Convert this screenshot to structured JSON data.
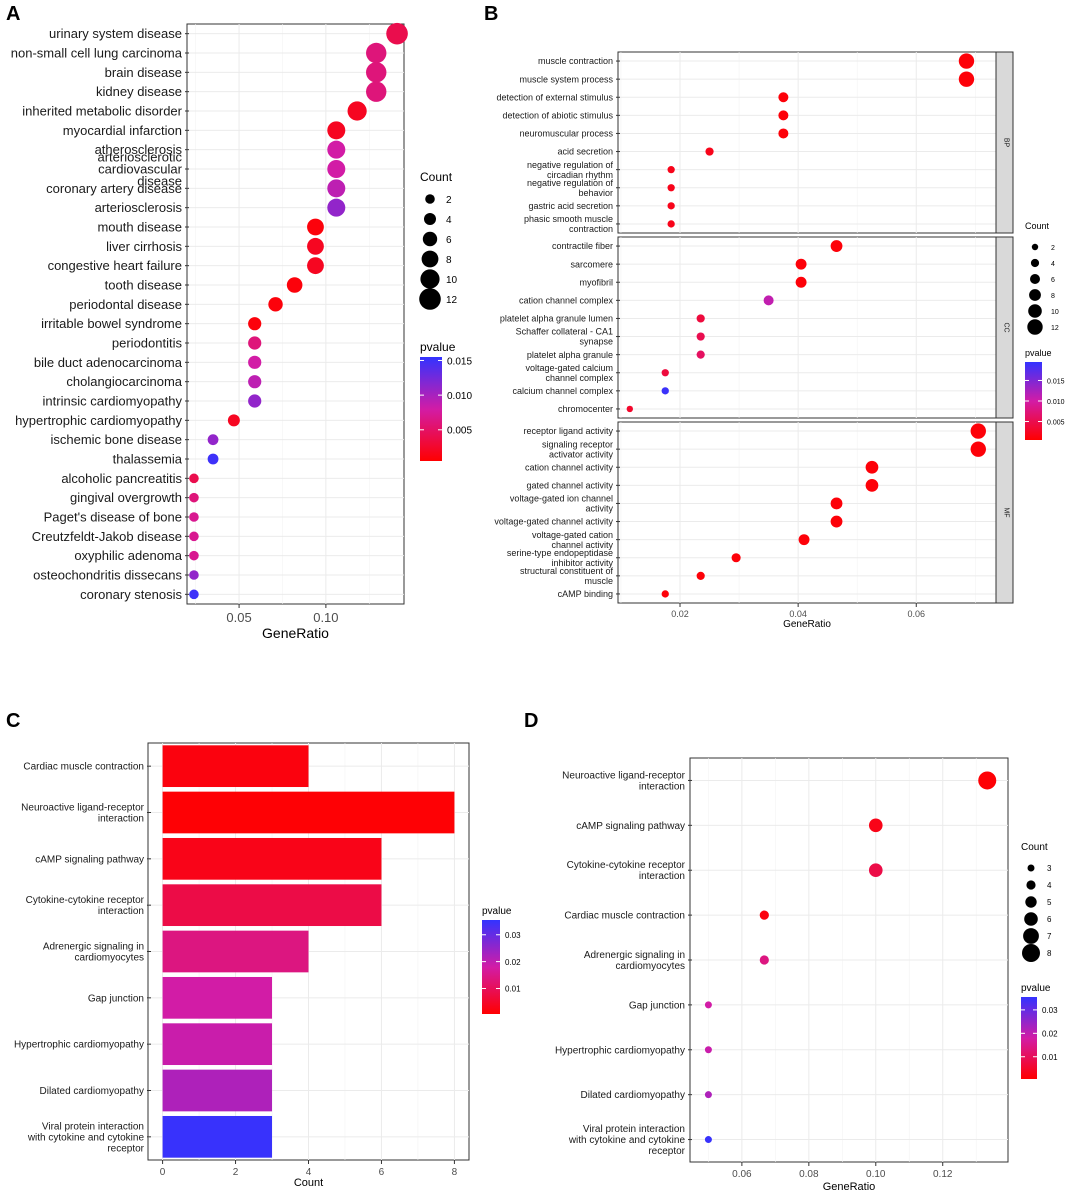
{
  "panels": {
    "a": "A",
    "b": "B",
    "c": "C",
    "d": "D"
  },
  "chart_data": [
    {
      "id": "A",
      "type": "scatter",
      "xlabel": "GeneRatio",
      "xlim": [
        0.02,
        0.145
      ],
      "xticks": [
        0.05,
        0.1
      ],
      "xtick_labels": [
        "0.05",
        "0.10"
      ],
      "size_legend": {
        "title": "Count",
        "values": [
          2,
          4,
          6,
          8,
          10,
          12
        ]
      },
      "color_legend": {
        "title": "pvalue",
        "range": [
          0.0005,
          0.0155
        ],
        "ticks": [
          0.005,
          0.01,
          0.015
        ],
        "tick_labels": [
          "0.005",
          "0.010",
          "0.015"
        ],
        "low_color": "#ff0000",
        "high_color": "#3333ff"
      },
      "categories": [
        "urinary system disease",
        "non-small cell lung carcinoma",
        "brain disease",
        "kidney disease",
        "inherited metabolic disorder",
        "myocardial infarction",
        "atherosclerosis",
        "arteriosclerotic cardiovascular disease",
        "coronary artery disease",
        "arteriosclerosis",
        "mouth disease",
        "liver cirrhosis",
        "congestive heart failure",
        "tooth disease",
        "periodontal disease",
        "irritable bowel syndrome",
        "periodontitis",
        "bile duct adenocarcinoma",
        "cholangiocarcinoma",
        "intrinsic cardiomyopathy",
        "hypertrophic cardiomyopathy",
        "ischemic bone disease",
        "thalassemia",
        "alcoholic pancreatitis",
        "gingival overgrowth",
        "Paget's disease of bone",
        "Creutzfeldt-Jakob disease",
        "oxyphilic adenoma",
        "osteochondritis dissecans",
        "coronary stenosis"
      ],
      "gene_ratio": [
        0.141,
        0.129,
        0.129,
        0.129,
        0.118,
        0.106,
        0.106,
        0.106,
        0.106,
        0.106,
        0.094,
        0.094,
        0.094,
        0.082,
        0.071,
        0.059,
        0.059,
        0.059,
        0.059,
        0.059,
        0.047,
        0.035,
        0.035,
        0.024,
        0.024,
        0.024,
        0.024,
        0.024,
        0.024,
        0.024
      ],
      "count": [
        12,
        11,
        11,
        11,
        10,
        9,
        9,
        9,
        9,
        9,
        8,
        8,
        8,
        7,
        6,
        5,
        5,
        5,
        5,
        5,
        4,
        3,
        3,
        2,
        2,
        2,
        2,
        2,
        2,
        2
      ],
      "pvalue": [
        0.004,
        0.006,
        0.006,
        0.006,
        0.002,
        0.002,
        0.008,
        0.008,
        0.009,
        0.011,
        0.001,
        0.002,
        0.002,
        0.001,
        0.001,
        0.001,
        0.006,
        0.008,
        0.009,
        0.011,
        0.002,
        0.011,
        0.015,
        0.004,
        0.006,
        0.007,
        0.007,
        0.007,
        0.011,
        0.015
      ]
    },
    {
      "id": "B",
      "type": "scatter",
      "xlabel": "GeneRatio",
      "xlim": [
        0.0095,
        0.0735
      ],
      "xticks": [
        0.02,
        0.04,
        0.06
      ],
      "xtick_labels": [
        "0.02",
        "0.04",
        "0.06"
      ],
      "size_legend": {
        "title": "Count",
        "values": [
          2,
          4,
          6,
          8,
          10,
          12
        ]
      },
      "color_legend": {
        "title": "pvalue",
        "range": [
          0.0005,
          0.0195
        ],
        "ticks": [
          0.005,
          0.01,
          0.015
        ],
        "tick_labels": [
          "0.005",
          "0.010",
          "0.015"
        ],
        "low_color": "#ff0000",
        "high_color": "#3333ff"
      },
      "facets": [
        {
          "name": "BP",
          "categories": [
            "muscle contraction",
            "muscle system process",
            "detection of external stimulus",
            "detection of abiotic stimulus",
            "neuromuscular process",
            "acid secretion",
            "negative regulation of circadian rhythm",
            "negative regulation of behavior",
            "gastric acid secretion",
            "phasic smooth muscle contraction"
          ],
          "gene_ratio": [
            0.0685,
            0.0685,
            0.0375,
            0.0375,
            0.0375,
            0.025,
            0.0185,
            0.0185,
            0.0185,
            0.0185
          ],
          "count": [
            12,
            12,
            6,
            6,
            6,
            4,
            3,
            3,
            3,
            3
          ],
          "pvalue": [
            0.001,
            0.001,
            0.001,
            0.001,
            0.001,
            0.002,
            0.002,
            0.002,
            0.002,
            0.002
          ]
        },
        {
          "name": "CC",
          "categories": [
            "contractile fiber",
            "sarcomere",
            "myofibril",
            "cation channel complex",
            "platelet alpha granule lumen",
            "Schaffer collateral - CA1 synapse",
            "platelet alpha granule",
            "voltage-gated calcium channel complex",
            "calcium channel complex",
            "chromocenter"
          ],
          "gene_ratio": [
            0.0465,
            0.0405,
            0.0405,
            0.035,
            0.0235,
            0.0235,
            0.0235,
            0.0175,
            0.0175,
            0.0115
          ],
          "count": [
            8,
            7,
            7,
            6,
            4,
            4,
            4,
            3,
            3,
            2
          ],
          "pvalue": [
            0.001,
            0.001,
            0.001,
            0.011,
            0.004,
            0.005,
            0.006,
            0.004,
            0.019,
            0.003
          ]
        },
        {
          "name": "MF",
          "categories": [
            "receptor ligand activity",
            "signaling receptor activator activity",
            "cation channel activity",
            "gated channel activity",
            "voltage-gated ion channel activity",
            "voltage-gated channel activity",
            "voltage-gated cation channel activity",
            "serine-type endopeptidase inhibitor activity",
            "structural constituent of muscle",
            "cAMP binding"
          ],
          "gene_ratio": [
            0.0705,
            0.0705,
            0.0525,
            0.0525,
            0.0465,
            0.0465,
            0.041,
            0.0295,
            0.0235,
            0.0175
          ],
          "count": [
            12,
            12,
            9,
            9,
            8,
            8,
            7,
            5,
            4,
            3
          ],
          "pvalue": [
            0.001,
            0.001,
            0.001,
            0.001,
            0.001,
            0.001,
            0.001,
            0.001,
            0.001,
            0.001
          ]
        }
      ]
    },
    {
      "id": "C",
      "type": "bar",
      "orientation": "horizontal",
      "xlabel": "Count",
      "xlim": [
        -0.4,
        8.4
      ],
      "xticks": [
        0,
        2,
        4,
        6,
        8
      ],
      "xtick_labels": [
        "0",
        "2",
        "4",
        "6",
        "8"
      ],
      "color_legend": {
        "title": "pvalue",
        "range": [
          0.0005,
          0.0355
        ],
        "ticks": [
          0.01,
          0.02,
          0.03
        ],
        "tick_labels": [
          "0.01",
          "0.02",
          "0.03"
        ],
        "low_color": "#ff0000",
        "high_color": "#3333ff"
      },
      "categories": [
        "Cardiac muscle contraction",
        "Neuroactive ligand-receptor interaction",
        "cAMP signaling pathway",
        "Cytokine-cytokine receptor interaction",
        "Adrenergic signaling in cardiomyocytes",
        "Gap junction",
        "Hypertrophic cardiomyopathy",
        "Dilated cardiomyopathy",
        "Viral protein interaction with cytokine and cytokine receptor"
      ],
      "values": [
        4,
        8,
        6,
        6,
        4,
        3,
        3,
        3,
        3
      ],
      "pvalue": [
        0.002,
        0.001,
        0.003,
        0.008,
        0.014,
        0.018,
        0.019,
        0.022,
        0.035
      ]
    },
    {
      "id": "D",
      "type": "scatter",
      "xlabel": "GeneRatio",
      "xlim": [
        0.0445,
        0.1395
      ],
      "xticks": [
        0.06,
        0.08,
        0.1,
        0.12
      ],
      "xtick_labels": [
        "0.06",
        "0.08",
        "0.10",
        "0.12"
      ],
      "size_legend": {
        "title": "Count",
        "values": [
          3,
          4,
          5,
          6,
          7,
          8
        ]
      },
      "color_legend": {
        "title": "pvalue",
        "range": [
          0.0005,
          0.0355
        ],
        "ticks": [
          0.01,
          0.02,
          0.03
        ],
        "tick_labels": [
          "0.01",
          "0.02",
          "0.03"
        ],
        "low_color": "#ff0000",
        "high_color": "#3333ff"
      },
      "categories": [
        "Neuroactive ligand-receptor interaction",
        "cAMP signaling pathway",
        "Cytokine-cytokine receptor interaction",
        "Cardiac muscle contraction",
        "Adrenergic signaling in cardiomyocytes",
        "Gap junction",
        "Hypertrophic cardiomyopathy",
        "Dilated cardiomyopathy",
        "Viral protein interaction with cytokine and cytokine receptor"
      ],
      "gene_ratio": [
        0.1333,
        0.1,
        0.1,
        0.0667,
        0.0667,
        0.05,
        0.05,
        0.05,
        0.05
      ],
      "count": [
        8,
        6,
        6,
        4,
        4,
        3,
        3,
        3,
        3
      ],
      "pvalue": [
        0.001,
        0.003,
        0.008,
        0.002,
        0.014,
        0.018,
        0.019,
        0.022,
        0.035
      ]
    }
  ]
}
